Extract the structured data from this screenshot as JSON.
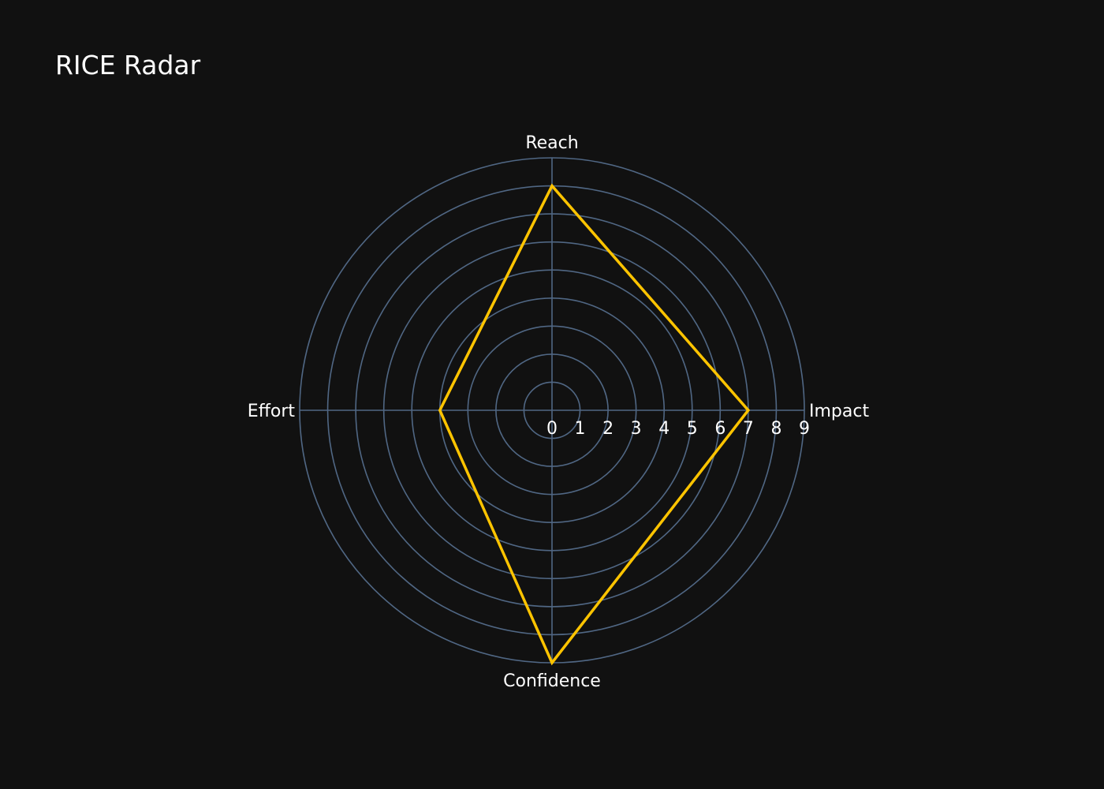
{
  "title": "RICE Radar",
  "colors": {
    "background": "#111111",
    "grid": "#506784",
    "series": "#FFC400",
    "text": "#ffffff"
  },
  "chart_data": {
    "type": "radar",
    "title": "RICE Radar",
    "axes": [
      "Reach",
      "Impact",
      "Confidence",
      "Effort"
    ],
    "radial_range": [
      0,
      9
    ],
    "radial_ticks": [
      "0",
      "1",
      "2",
      "3",
      "4",
      "5",
      "6",
      "7",
      "8",
      "9"
    ],
    "series": [
      {
        "values": [
          8,
          7,
          9,
          4
        ]
      }
    ],
    "grid": true,
    "legend": "none"
  }
}
